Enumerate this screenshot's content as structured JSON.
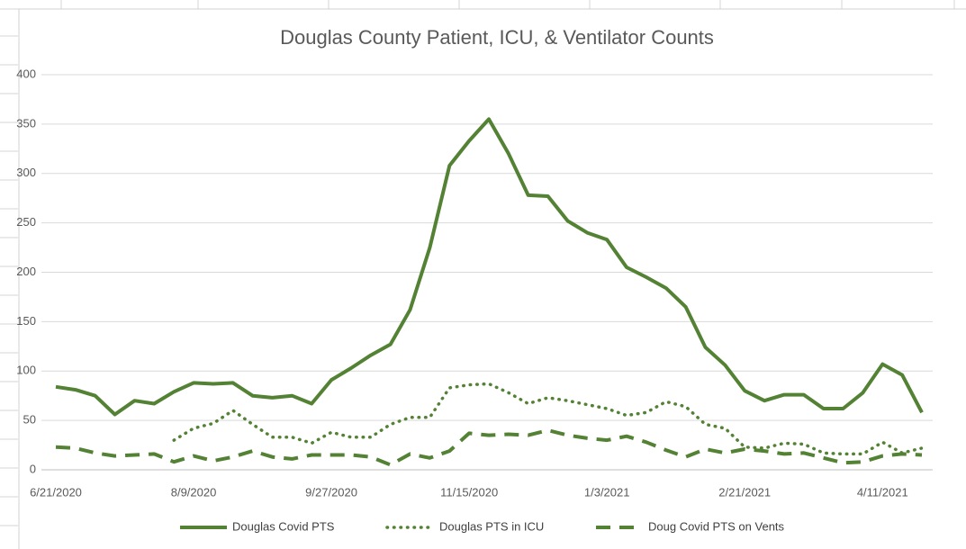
{
  "chart_data": {
    "type": "line",
    "title": "Douglas County Patient, ICU, & Ventilator Counts",
    "categories": [
      "6/21/2020",
      null,
      null,
      null,
      null,
      null,
      null,
      "8/9/2020",
      null,
      null,
      null,
      null,
      null,
      null,
      "9/27/2020",
      null,
      null,
      null,
      null,
      null,
      null,
      "11/15/2020",
      null,
      null,
      null,
      null,
      null,
      null,
      "1/3/2021",
      null,
      null,
      null,
      null,
      null,
      null,
      "2/21/2021",
      null,
      null,
      null,
      null,
      null,
      null,
      "4/11/2021",
      null,
      null
    ],
    "series": [
      {
        "name": "Douglas Covid PTS",
        "color": "#548235",
        "style": "solid",
        "values": [
          84,
          81,
          75,
          56,
          70,
          67,
          79,
          88,
          87,
          88,
          75,
          73,
          75,
          67,
          91,
          103,
          116,
          127,
          162,
          225,
          308,
          333,
          355,
          320,
          278,
          277,
          252,
          240,
          233,
          205,
          195,
          184,
          165,
          124,
          106,
          80,
          70,
          76,
          76,
          62,
          62,
          78,
          107,
          96,
          58
        ]
      },
      {
        "name": "Douglas PTS in ICU",
        "color": "#548235",
        "style": "dotted",
        "values": [
          null,
          null,
          null,
          null,
          null,
          null,
          30,
          42,
          47,
          60,
          46,
          33,
          33,
          27,
          38,
          33,
          33,
          46,
          53,
          53,
          83,
          86,
          87,
          78,
          67,
          73,
          70,
          66,
          62,
          55,
          58,
          69,
          64,
          46,
          42,
          23,
          22,
          27,
          26,
          17,
          16,
          16,
          28,
          17,
          22
        ]
      },
      {
        "name": "Doug Covid PTS on Vents",
        "color": "#548235",
        "style": "dashed",
        "values": [
          23,
          22,
          17,
          14,
          15,
          16,
          8,
          14,
          9,
          13,
          19,
          13,
          11,
          15,
          15,
          15,
          13,
          5,
          16,
          12,
          19,
          37,
          35,
          36,
          35,
          40,
          35,
          32,
          30,
          34,
          28,
          20,
          13,
          21,
          17,
          21,
          19,
          16,
          17,
          12,
          7,
          8,
          14,
          16,
          15
        ]
      }
    ],
    "ylim": [
      0,
      400
    ],
    "yticks": [
      0,
      50,
      100,
      150,
      200,
      250,
      300,
      350,
      400
    ],
    "grid": true,
    "legend": "bottom"
  }
}
